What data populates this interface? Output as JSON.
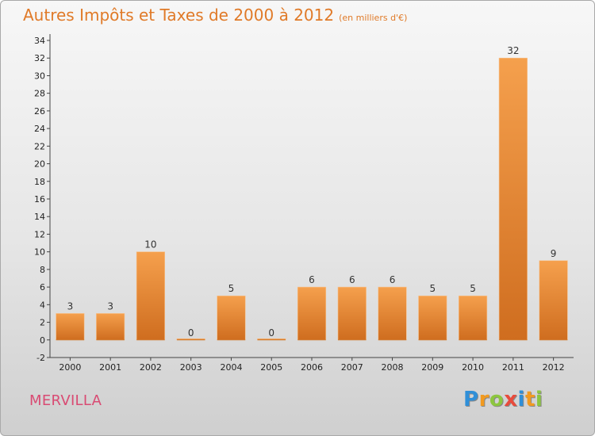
{
  "title": "Autres Impôts et Taxes de 2000 à 2012",
  "subtitle": "(en milliers d'€)",
  "commune": "MERVILLA",
  "logo": {
    "text": "Proxiti",
    "letters": [
      "P",
      "r",
      "o",
      "x",
      "i",
      "t",
      "i"
    ],
    "colors": [
      "#2f8fd8",
      "#f29a1f",
      "#8cc63f",
      "#e84b3c",
      "#2f8fd8",
      "#f29a1f",
      "#8cc63f"
    ]
  },
  "colors": {
    "bar_top": "#f5a04d",
    "bar_bottom": "#cf6d1f",
    "title": "#e07a28",
    "commune": "#d94b73"
  },
  "chart_data": {
    "type": "bar",
    "categories": [
      "2000",
      "2001",
      "2002",
      "2003",
      "2004",
      "2005",
      "2006",
      "2007",
      "2008",
      "2009",
      "2010",
      "2011",
      "2012"
    ],
    "values": [
      3,
      3,
      10,
      0,
      5,
      0,
      6,
      6,
      6,
      5,
      5,
      32,
      9
    ],
    "data_labels": [
      "3",
      "3",
      "10",
      "0",
      "5",
      "0",
      "6",
      "6",
      "6",
      "5",
      "5",
      "32",
      "9"
    ],
    "ylim": [
      -2,
      34
    ],
    "yticks": [
      -2,
      0,
      2,
      4,
      6,
      8,
      10,
      12,
      14,
      16,
      18,
      20,
      22,
      24,
      26,
      28,
      30,
      32,
      34
    ],
    "grid": false,
    "legend": "none"
  }
}
